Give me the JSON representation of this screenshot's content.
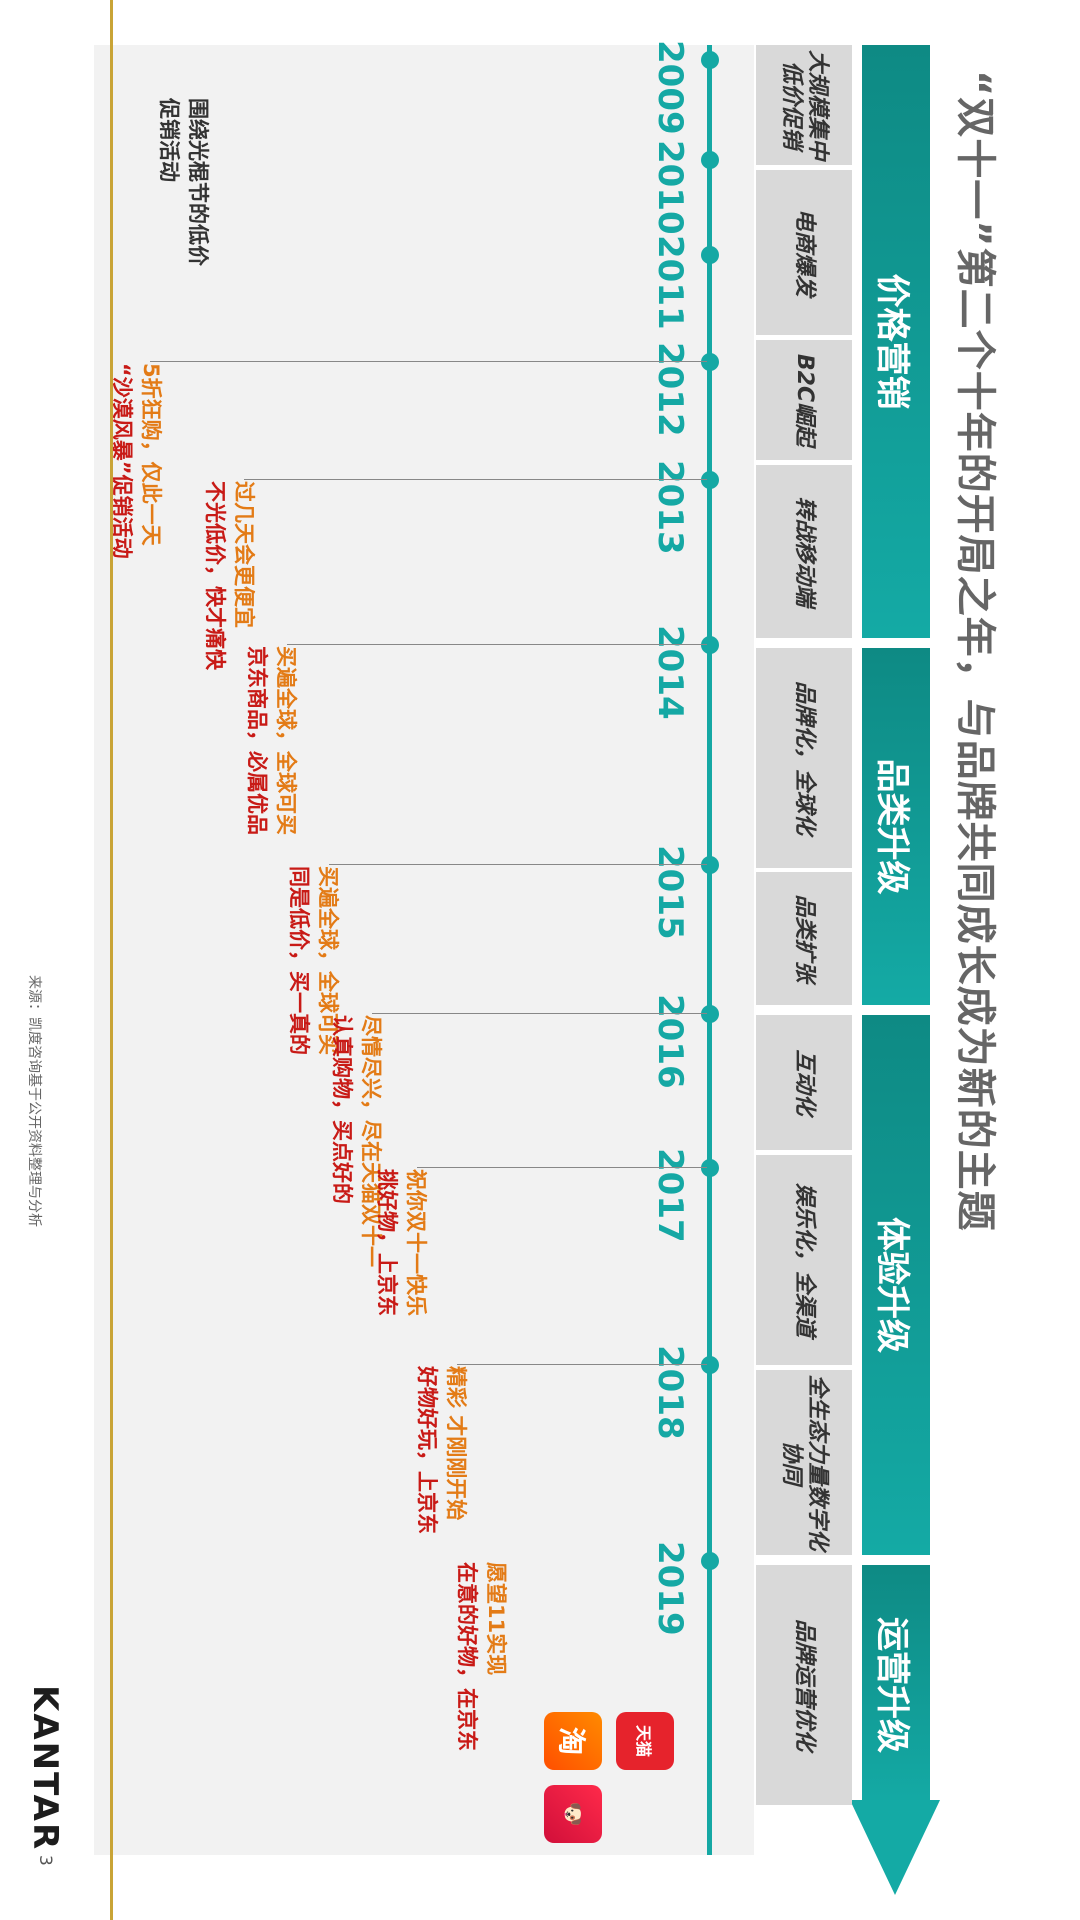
{
  "title": "“双十一”第二个十年的开局之年，与品牌共同成长成为新的主题",
  "phases": [
    "价格营销",
    "品类升级",
    "体验升级",
    "运营升级"
  ],
  "subphases": [
    "大规模集中低价促销",
    "电商爆发",
    "B2C崛起",
    "转战移动端",
    "品牌化，全球化",
    "品类扩张",
    "互动化",
    "娱乐化，全渠道",
    "全生态力量数字化协同",
    "品牌运营优化"
  ],
  "years": [
    "2009",
    "2010",
    "2011",
    "2012",
    "2013",
    "2014",
    "2015",
    "2016",
    "2017",
    "2018",
    "2019"
  ],
  "slogans": [
    {
      "o": "围绕光棍节的低价",
      "r": "促销活动"
    },
    {
      "o": "5折狂购，仅此一天",
      "r": "“沙漠风暴”促销活动"
    },
    {
      "o": "过几天会更便宜",
      "r": "不光低价，快才痛快"
    },
    {
      "o": "买遍全球，全球可买",
      "r": "京东商品，必属优品"
    },
    {
      "o": "买遍全球，全球可买",
      "r": "同是低价，买一真的"
    },
    {
      "o": "尽情尽兴，尽在天猫双十一",
      "r": "认真购物，买点好的"
    },
    {
      "o": "祝你双十一快乐",
      "r": "挑好物，上京东"
    },
    {
      "o": "精彩 才刚刚开始",
      "r": "好物好玩，上京东"
    },
    {
      "o": "愿望11实现",
      "r": "在意的好物，在京东"
    }
  ],
  "apps": {
    "taobao": "淘",
    "tmall": "天猫"
  },
  "logo": "KANTAR",
  "source": "来源：凯度咨询基于公开资料整理与分析",
  "page": "3",
  "colors": {
    "teal": "#15a8a4",
    "orange": "#e37b16",
    "red": "#c81a16"
  }
}
